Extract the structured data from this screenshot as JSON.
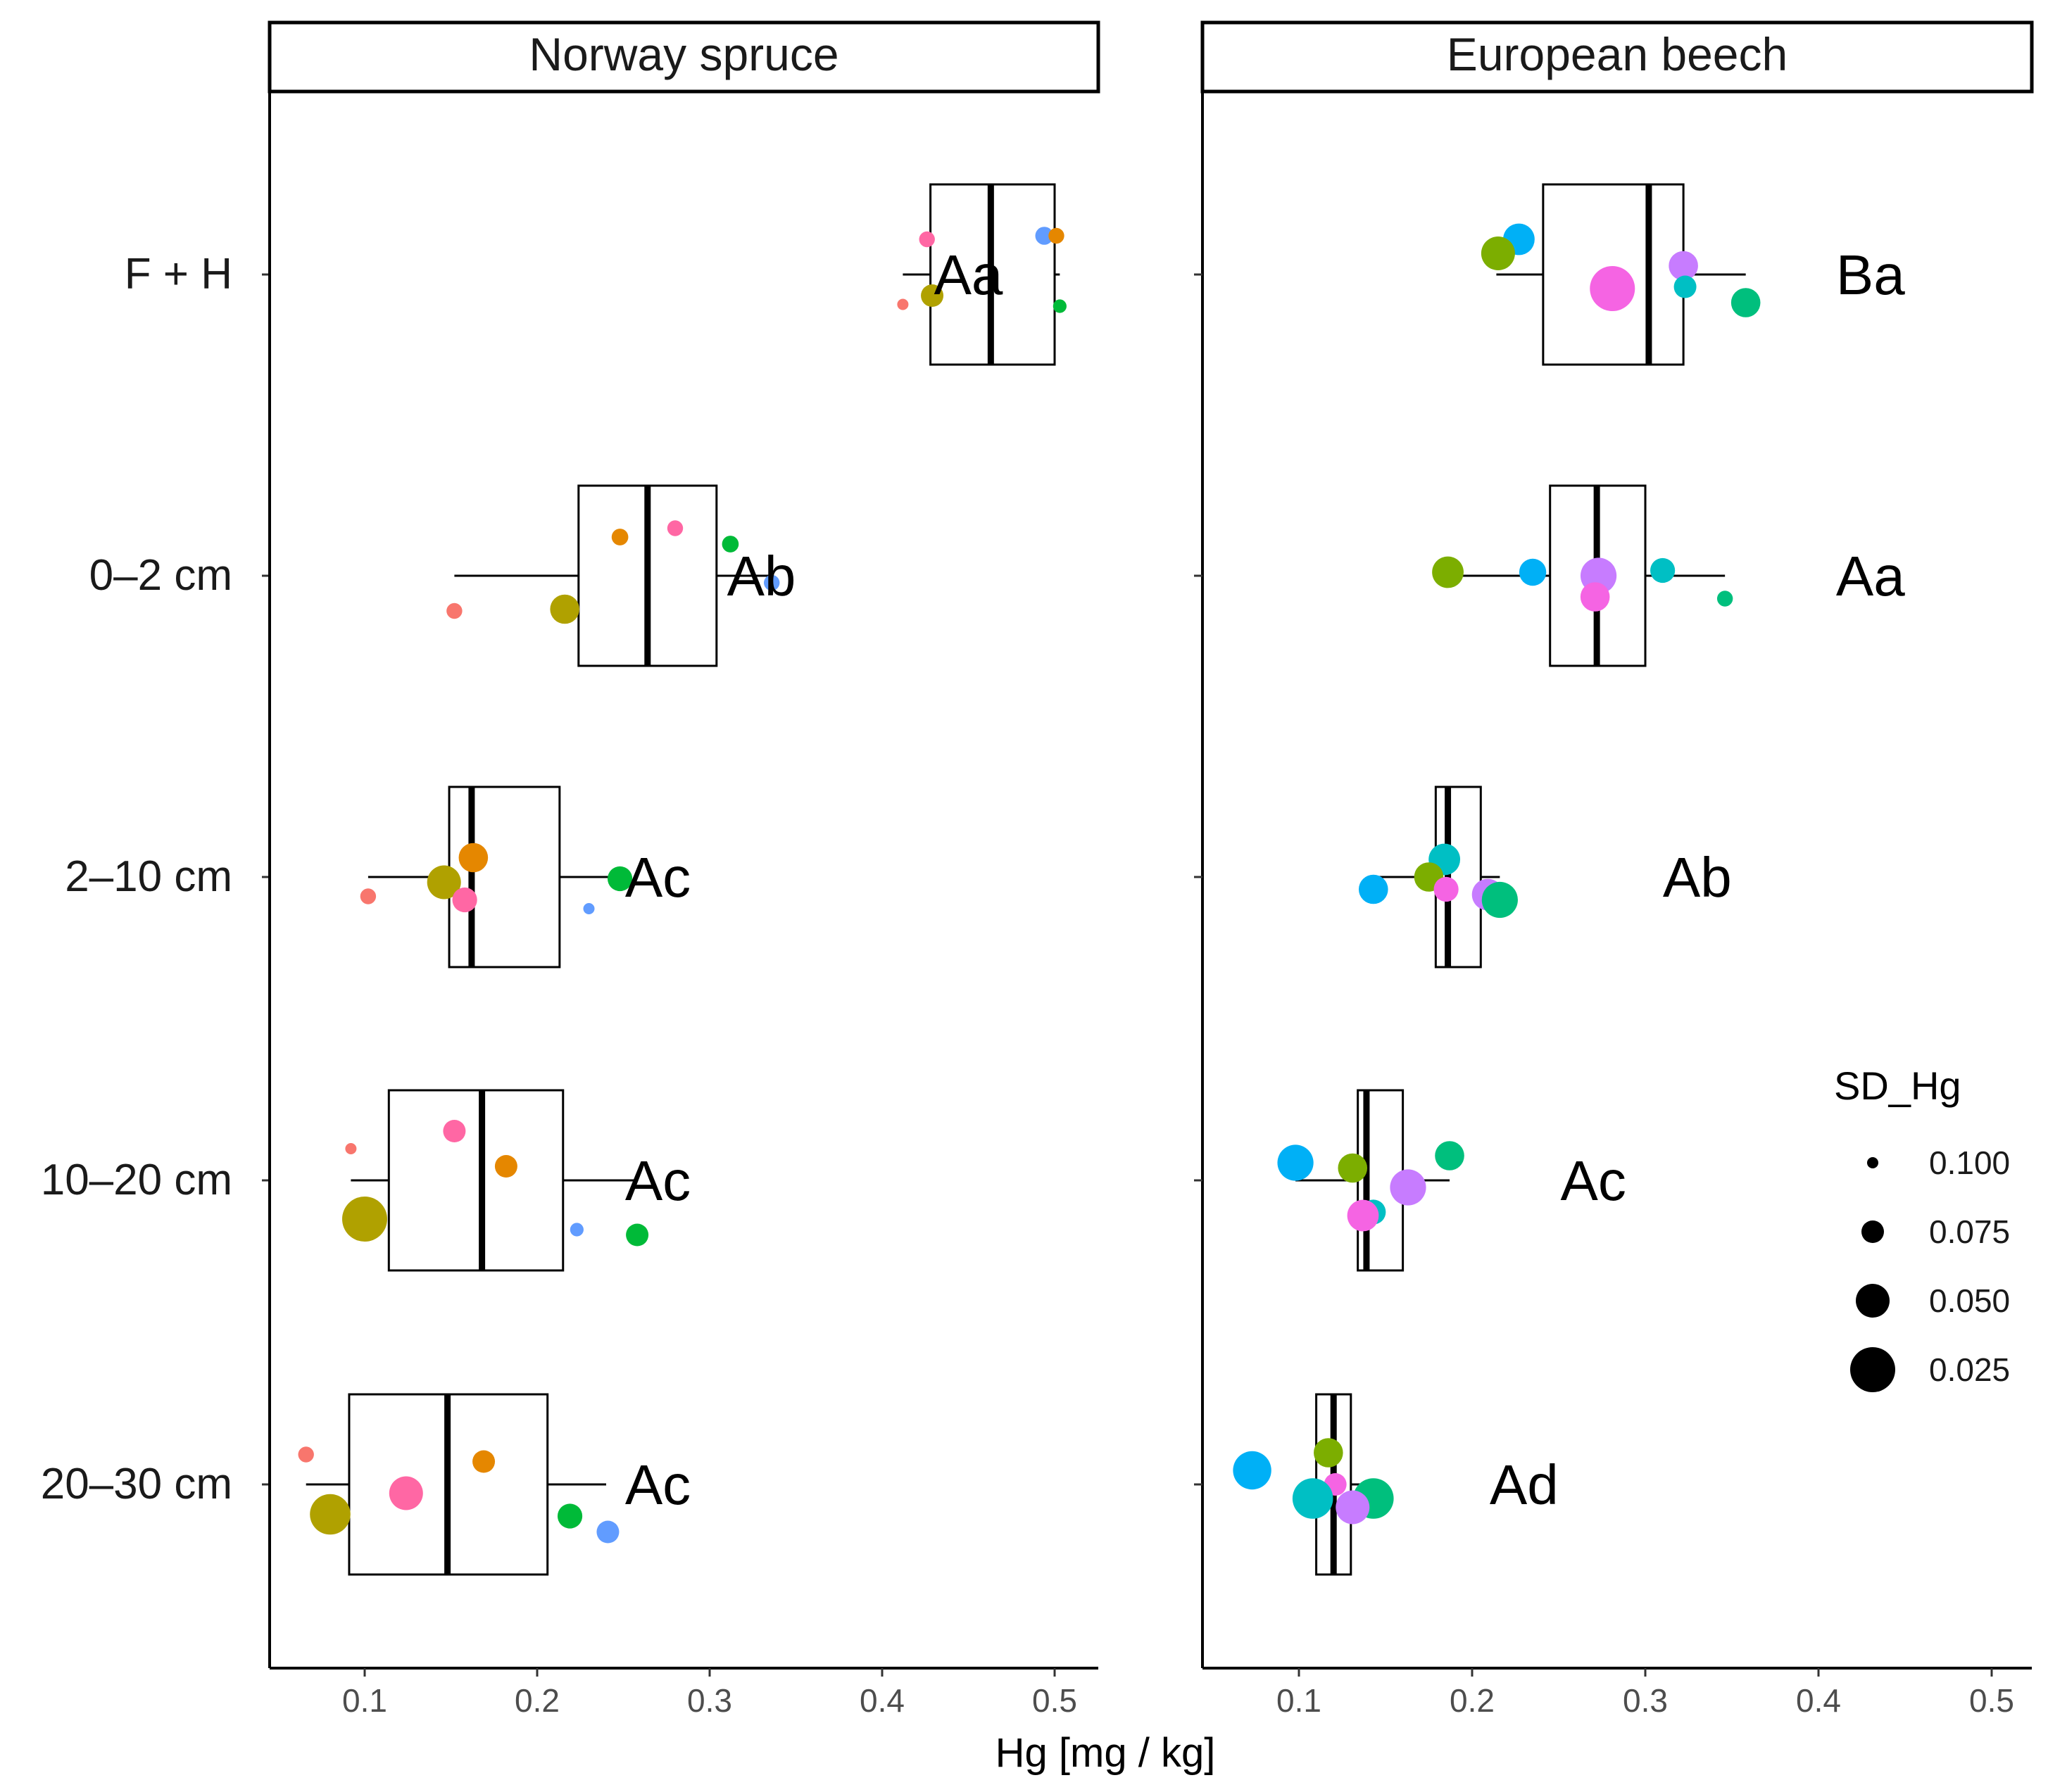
{
  "chart_data": {
    "type": "box",
    "xlabel": "Hg [mg / kg]",
    "xlim": [
      0.05,
      0.525
    ],
    "x_ticks": [
      0.1,
      0.2,
      0.3,
      0.4,
      0.5
    ],
    "x_tick_labels": [
      "0.1",
      "0.2",
      "0.3",
      "0.4",
      "0.5"
    ],
    "categories": [
      "F + H",
      "0–2 cm",
      "2–10 cm",
      "10–20 cm",
      "20–30 cm"
    ],
    "legend": {
      "title": "SD_Hg",
      "entries": [
        {
          "label": "0.100",
          "value": 0.1
        },
        {
          "label": "0.075",
          "value": 0.075
        },
        {
          "label": "0.050",
          "value": 0.05
        },
        {
          "label": "0.025",
          "value": 0.025
        }
      ]
    },
    "point_colors": {
      "red": "#F8766D",
      "orange": "#E58700",
      "olive": "#B0A100",
      "green": "#00BA38",
      "blue": "#619CFF",
      "pink": "#FF67A4",
      "yellowgreen": "#7CAE00",
      "teal": "#00BFC4",
      "skyblue": "#00B0F6",
      "violet": "#C77CFF",
      "magenta": "#F564E3",
      "seagreen": "#00BF7D"
    },
    "panels": [
      {
        "title": "Norway spruce",
        "boxes": [
          {
            "category": "F + H",
            "whisker_low": 0.412,
            "q1": 0.428,
            "median": 0.463,
            "q3": 0.5,
            "whisker_high": 0.503,
            "letter": "Aa",
            "letter_x": 0.45,
            "points": [
              {
                "x": 0.426,
                "dy": 0.2,
                "sd": 0.09,
                "color": "pink"
              },
              {
                "x": 0.494,
                "dy": 0.22,
                "sd": 0.085,
                "color": "blue"
              },
              {
                "x": 0.501,
                "dy": 0.22,
                "sd": 0.09,
                "color": "orange"
              },
              {
                "x": 0.412,
                "dy": -0.17,
                "sd": 0.1,
                "color": "red"
              },
              {
                "x": 0.429,
                "dy": -0.12,
                "sd": 0.075,
                "color": "olive"
              },
              {
                "x": 0.503,
                "dy": -0.18,
                "sd": 0.095,
                "color": "green"
              }
            ]
          },
          {
            "category": "0–2 cm",
            "whisker_low": 0.152,
            "q1": 0.224,
            "median": 0.264,
            "q3": 0.304,
            "whisker_high": 0.336,
            "letter": "Ab",
            "letter_x": 0.33,
            "points": [
              {
                "x": 0.248,
                "dy": 0.22,
                "sd": 0.088,
                "color": "orange"
              },
              {
                "x": 0.28,
                "dy": 0.27,
                "sd": 0.09,
                "color": "pink"
              },
              {
                "x": 0.312,
                "dy": 0.18,
                "sd": 0.088,
                "color": "green"
              },
              {
                "x": 0.336,
                "dy": -0.04,
                "sd": 0.09,
                "color": "blue"
              },
              {
                "x": 0.152,
                "dy": -0.2,
                "sd": 0.09,
                "color": "red"
              },
              {
                "x": 0.216,
                "dy": -0.19,
                "sd": 0.06,
                "color": "olive"
              }
            ]
          },
          {
            "category": "2–10 cm",
            "whisker_low": 0.102,
            "q1": 0.149,
            "median": 0.162,
            "q3": 0.213,
            "whisker_high": 0.248,
            "letter": "Ac",
            "letter_x": 0.27,
            "points": [
              {
                "x": 0.163,
                "dy": 0.11,
                "sd": 0.06,
                "color": "orange"
              },
              {
                "x": 0.146,
                "dy": -0.03,
                "sd": 0.05,
                "color": "olive"
              },
              {
                "x": 0.248,
                "dy": -0.01,
                "sd": 0.07,
                "color": "green"
              },
              {
                "x": 0.102,
                "dy": -0.11,
                "sd": 0.09,
                "color": "red"
              },
              {
                "x": 0.158,
                "dy": -0.13,
                "sd": 0.07,
                "color": "pink"
              },
              {
                "x": 0.23,
                "dy": -0.18,
                "sd": 0.1,
                "color": "blue"
              }
            ]
          },
          {
            "category": "10–20 cm",
            "whisker_low": 0.092,
            "q1": 0.114,
            "median": 0.168,
            "q3": 0.215,
            "whisker_high": 0.258,
            "letter": "Ac",
            "letter_x": 0.27,
            "points": [
              {
                "x": 0.152,
                "dy": 0.28,
                "sd": 0.075,
                "color": "pink"
              },
              {
                "x": 0.092,
                "dy": 0.18,
                "sd": 0.1,
                "color": "red"
              },
              {
                "x": 0.182,
                "dy": 0.08,
                "sd": 0.075,
                "color": "orange"
              },
              {
                "x": 0.1,
                "dy": -0.22,
                "sd": 0.025,
                "color": "olive"
              },
              {
                "x": 0.223,
                "dy": -0.28,
                "sd": 0.095,
                "color": "blue"
              },
              {
                "x": 0.258,
                "dy": -0.31,
                "sd": 0.075,
                "color": "green"
              }
            ]
          },
          {
            "category": "20–30 cm",
            "whisker_low": 0.066,
            "q1": 0.091,
            "median": 0.148,
            "q3": 0.206,
            "whisker_high": 0.24,
            "letter": "Ac",
            "letter_x": 0.27,
            "points": [
              {
                "x": 0.066,
                "dy": 0.17,
                "sd": 0.09,
                "color": "red"
              },
              {
                "x": 0.169,
                "dy": 0.13,
                "sd": 0.075,
                "color": "orange"
              },
              {
                "x": 0.124,
                "dy": -0.05,
                "sd": 0.05,
                "color": "pink"
              },
              {
                "x": 0.08,
                "dy": -0.17,
                "sd": 0.035,
                "color": "olive"
              },
              {
                "x": 0.219,
                "dy": -0.18,
                "sd": 0.07,
                "color": "green"
              },
              {
                "x": 0.241,
                "dy": -0.27,
                "sd": 0.075,
                "color": "blue"
              }
            ]
          }
        ]
      },
      {
        "title": "European beech",
        "boxes": [
          {
            "category": "F + H",
            "whisker_low": 0.214,
            "q1": 0.241,
            "median": 0.302,
            "q3": 0.322,
            "whisker_high": 0.358,
            "letter": "Ba",
            "letter_x": 0.43,
            "points": [
              {
                "x": 0.227,
                "dy": 0.2,
                "sd": 0.055,
                "color": "skyblue"
              },
              {
                "x": 0.215,
                "dy": 0.12,
                "sd": 0.05,
                "color": "yellowgreen"
              },
              {
                "x": 0.322,
                "dy": 0.05,
                "sd": 0.06,
                "color": "violet"
              },
              {
                "x": 0.323,
                "dy": -0.07,
                "sd": 0.075,
                "color": "teal"
              },
              {
                "x": 0.281,
                "dy": -0.08,
                "sd": 0.025,
                "color": "magenta"
              },
              {
                "x": 0.358,
                "dy": -0.16,
                "sd": 0.06,
                "color": "seagreen"
              }
            ]
          },
          {
            "category": "0–2 cm",
            "whisker_low": 0.186,
            "q1": 0.245,
            "median": 0.272,
            "q3": 0.3,
            "whisker_high": 0.346,
            "letter": "Aa",
            "letter_x": 0.43,
            "points": [
              {
                "x": 0.186,
                "dy": 0.02,
                "sd": 0.055,
                "color": "yellowgreen"
              },
              {
                "x": 0.235,
                "dy": 0.02,
                "sd": 0.065,
                "color": "skyblue"
              },
              {
                "x": 0.31,
                "dy": 0.03,
                "sd": 0.07,
                "color": "teal"
              },
              {
                "x": 0.273,
                "dy": 0.0,
                "sd": 0.045,
                "color": "violet"
              },
              {
                "x": 0.271,
                "dy": -0.12,
                "sd": 0.06,
                "color": "magenta"
              },
              {
                "x": 0.346,
                "dy": -0.13,
                "sd": 0.09,
                "color": "seagreen"
              }
            ]
          },
          {
            "category": "2–10 cm",
            "whisker_low": 0.143,
            "q1": 0.179,
            "median": 0.186,
            "q3": 0.205,
            "whisker_high": 0.216,
            "letter": "Ab",
            "letter_x": 0.33,
            "points": [
              {
                "x": 0.184,
                "dy": 0.1,
                "sd": 0.055,
                "color": "teal"
              },
              {
                "x": 0.175,
                "dy": 0.0,
                "sd": 0.06,
                "color": "yellowgreen"
              },
              {
                "x": 0.143,
                "dy": -0.07,
                "sd": 0.06,
                "color": "skyblue"
              },
              {
                "x": 0.185,
                "dy": -0.07,
                "sd": 0.07,
                "color": "magenta"
              },
              {
                "x": 0.209,
                "dy": -0.1,
                "sd": 0.055,
                "color": "violet"
              },
              {
                "x": 0.216,
                "dy": -0.13,
                "sd": 0.045,
                "color": "seagreen"
              }
            ]
          },
          {
            "category": "10–20 cm",
            "whisker_low": 0.098,
            "q1": 0.134,
            "median": 0.139,
            "q3": 0.16,
            "whisker_high": 0.187,
            "letter": "Ac",
            "letter_x": 0.27,
            "points": [
              {
                "x": 0.187,
                "dy": 0.14,
                "sd": 0.06,
                "color": "seagreen"
              },
              {
                "x": 0.098,
                "dy": 0.1,
                "sd": 0.045,
                "color": "skyblue"
              },
              {
                "x": 0.131,
                "dy": 0.07,
                "sd": 0.06,
                "color": "yellowgreen"
              },
              {
                "x": 0.163,
                "dy": -0.04,
                "sd": 0.045,
                "color": "violet"
              },
              {
                "x": 0.143,
                "dy": -0.18,
                "sd": 0.07,
                "color": "teal"
              },
              {
                "x": 0.137,
                "dy": -0.2,
                "sd": 0.055,
                "color": "magenta"
              }
            ]
          },
          {
            "category": "20–30 cm",
            "whisker_low": 0.11,
            "q1": 0.11,
            "median": 0.12,
            "q3": 0.13,
            "whisker_high": 0.14,
            "letter": "Ad",
            "letter_x": 0.23,
            "points": [
              {
                "x": 0.117,
                "dy": 0.18,
                "sd": 0.06,
                "color": "yellowgreen"
              },
              {
                "x": 0.073,
                "dy": 0.08,
                "sd": 0.04,
                "color": "skyblue"
              },
              {
                "x": 0.121,
                "dy": 0.0,
                "sd": 0.075,
                "color": "magenta"
              },
              {
                "x": 0.108,
                "dy": -0.08,
                "sd": 0.035,
                "color": "teal"
              },
              {
                "x": 0.143,
                "dy": -0.08,
                "sd": 0.035,
                "color": "seagreen"
              },
              {
                "x": 0.131,
                "dy": -0.13,
                "sd": 0.05,
                "color": "violet"
              }
            ]
          }
        ]
      }
    ]
  }
}
